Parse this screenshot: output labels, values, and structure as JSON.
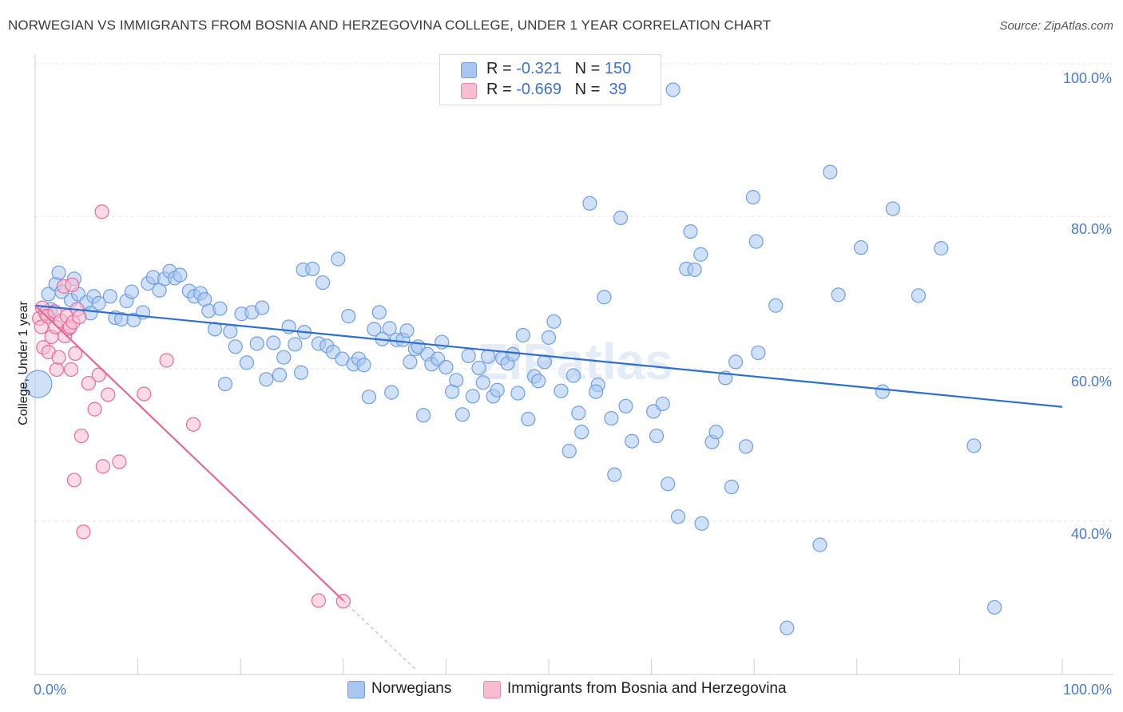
{
  "title": "NORWEGIAN VS IMMIGRANTS FROM BOSNIA AND HERZEGOVINA COLLEGE, UNDER 1 YEAR CORRELATION CHART",
  "source": "Source: ZipAtlas.com",
  "watermark": "ZIPatlas",
  "legend": {
    "rows": [
      {
        "r_label": "R = ",
        "r_value": "-0.321",
        "n_label": "N = ",
        "n_value": "150",
        "color": "#aac6f0"
      },
      {
        "r_label": "R = ",
        "r_value": "-0.669",
        "n_label": "N = ",
        "n_value": " 39",
        "color": "#f6bcd0"
      }
    ]
  },
  "bottom_legend": [
    {
      "label": "Norwegians",
      "color": "#aac6f0"
    },
    {
      "label": "Immigrants from Bosnia and Herzegovina",
      "color": "#f6bcd0"
    }
  ],
  "chart_data": {
    "type": "scatter",
    "title": "NORWEGIAN VS IMMIGRANTS FROM BOSNIA AND HERZEGOVINA COLLEGE, UNDER 1 YEAR CORRELATION CHART",
    "xlabel": "",
    "ylabel": "College, Under 1 year",
    "xlim": [
      0,
      100
    ],
    "ylim": [
      20,
      100
    ],
    "x_tick_labels": [
      "0.0%",
      "100.0%"
    ],
    "y_tick_labels": [
      "100.0%",
      "80.0%",
      "60.0%",
      "40.0%"
    ],
    "y_ticks": [
      100,
      80,
      60,
      40
    ],
    "grid": true,
    "legend_position": "top-center",
    "series": [
      {
        "name": "Norwegians",
        "color": "#6f9fe0",
        "fill": "#aac6f0",
        "trend": {
          "x": [
            0,
            100
          ],
          "y": [
            68.3,
            55.0
          ]
        },
        "points": [
          [
            0.3,
            58.0
          ],
          [
            1.1,
            67.2
          ],
          [
            1.5,
            67.8
          ],
          [
            1.3,
            69.8
          ],
          [
            2.0,
            71.1
          ],
          [
            2.3,
            72.6
          ],
          [
            2.6,
            70.1
          ],
          [
            3.5,
            69.0
          ],
          [
            3.8,
            71.8
          ],
          [
            4.2,
            69.8
          ],
          [
            5.0,
            68.7
          ],
          [
            5.7,
            69.5
          ],
          [
            6.2,
            68.6
          ],
          [
            5.4,
            67.3
          ],
          [
            7.3,
            69.5
          ],
          [
            7.8,
            66.7
          ],
          [
            8.4,
            66.5
          ],
          [
            8.9,
            68.9
          ],
          [
            9.4,
            70.1
          ],
          [
            9.6,
            66.4
          ],
          [
            10.5,
            67.4
          ],
          [
            11.0,
            71.2
          ],
          [
            11.5,
            72.0
          ],
          [
            12.1,
            70.3
          ],
          [
            12.6,
            71.8
          ],
          [
            13.1,
            72.8
          ],
          [
            13.6,
            71.9
          ],
          [
            14.1,
            72.3
          ],
          [
            15.0,
            70.2
          ],
          [
            15.5,
            69.5
          ],
          [
            16.1,
            69.9
          ],
          [
            16.5,
            69.1
          ],
          [
            16.9,
            67.6
          ],
          [
            17.5,
            65.2
          ],
          [
            18.0,
            67.9
          ],
          [
            18.5,
            58.0
          ],
          [
            19.0,
            64.9
          ],
          [
            19.5,
            62.9
          ],
          [
            20.1,
            67.2
          ],
          [
            20.6,
            60.8
          ],
          [
            21.1,
            67.4
          ],
          [
            21.6,
            63.3
          ],
          [
            22.1,
            68.0
          ],
          [
            22.5,
            58.6
          ],
          [
            23.2,
            63.4
          ],
          [
            23.8,
            59.2
          ],
          [
            24.2,
            61.5
          ],
          [
            24.7,
            65.5
          ],
          [
            25.3,
            63.2
          ],
          [
            25.9,
            59.5
          ],
          [
            26.2,
            64.8
          ],
          [
            26.1,
            73.0
          ],
          [
            27.0,
            73.1
          ],
          [
            27.6,
            63.3
          ],
          [
            28.0,
            71.3
          ],
          [
            28.4,
            63.0
          ],
          [
            29.0,
            62.2
          ],
          [
            29.5,
            74.4
          ],
          [
            29.9,
            61.3
          ],
          [
            30.5,
            66.9
          ],
          [
            31.0,
            60.6
          ],
          [
            31.5,
            61.3
          ],
          [
            32.0,
            60.5
          ],
          [
            32.5,
            56.3
          ],
          [
            33.0,
            65.2
          ],
          [
            33.5,
            67.4
          ],
          [
            33.8,
            63.9
          ],
          [
            34.5,
            65.3
          ],
          [
            34.7,
            56.9
          ],
          [
            35.2,
            63.8
          ],
          [
            35.8,
            63.8
          ],
          [
            36.2,
            65.0
          ],
          [
            36.5,
            60.9
          ],
          [
            37.0,
            62.6
          ],
          [
            37.3,
            62.9
          ],
          [
            37.8,
            53.9
          ],
          [
            38.2,
            61.9
          ],
          [
            38.6,
            60.6
          ],
          [
            39.2,
            61.3
          ],
          [
            39.6,
            63.5
          ],
          [
            40.0,
            60.2
          ],
          [
            40.6,
            57.0
          ],
          [
            41.0,
            58.5
          ],
          [
            41.6,
            54.0
          ],
          [
            42.2,
            61.7
          ],
          [
            42.6,
            56.4
          ],
          [
            43.2,
            60.1
          ],
          [
            43.6,
            58.2
          ],
          [
            44.1,
            61.6
          ],
          [
            44.6,
            56.4
          ],
          [
            45.0,
            57.2
          ],
          [
            45.5,
            61.4
          ],
          [
            46.0,
            60.7
          ],
          [
            46.5,
            61.9
          ],
          [
            47.0,
            56.8
          ],
          [
            47.5,
            64.4
          ],
          [
            48.0,
            53.4
          ],
          [
            48.6,
            59.0
          ],
          [
            49.0,
            58.4
          ],
          [
            49.6,
            60.9
          ],
          [
            50.0,
            64.1
          ],
          [
            50.5,
            66.2
          ],
          [
            51.2,
            57.1
          ],
          [
            52.0,
            49.2
          ],
          [
            52.4,
            59.1
          ],
          [
            52.9,
            54.2
          ],
          [
            53.2,
            51.7
          ],
          [
            54.0,
            81.7
          ],
          [
            54.8,
            57.9
          ],
          [
            54.6,
            57.0
          ],
          [
            55.4,
            69.4
          ],
          [
            56.1,
            53.5
          ],
          [
            56.4,
            46.1
          ],
          [
            57.0,
            79.8
          ],
          [
            57.5,
            55.1
          ],
          [
            58.1,
            50.5
          ],
          [
            60.2,
            54.4
          ],
          [
            60.5,
            51.2
          ],
          [
            61.1,
            55.4
          ],
          [
            61.6,
            44.9
          ],
          [
            62.1,
            96.6
          ],
          [
            62.6,
            40.6
          ],
          [
            63.4,
            73.1
          ],
          [
            63.8,
            78.0
          ],
          [
            64.2,
            73.0
          ],
          [
            64.8,
            75.0
          ],
          [
            64.9,
            39.7
          ],
          [
            65.9,
            50.4
          ],
          [
            66.3,
            51.7
          ],
          [
            67.2,
            58.8
          ],
          [
            67.8,
            44.5
          ],
          [
            68.2,
            60.9
          ],
          [
            69.2,
            49.8
          ],
          [
            69.9,
            82.5
          ],
          [
            70.2,
            76.7
          ],
          [
            70.4,
            62.1
          ],
          [
            72.1,
            68.3
          ],
          [
            73.2,
            26.0
          ],
          [
            76.4,
            36.9
          ],
          [
            77.4,
            85.8
          ],
          [
            78.2,
            69.7
          ],
          [
            80.4,
            75.9
          ],
          [
            82.5,
            57.0
          ],
          [
            83.5,
            81.0
          ],
          [
            86.0,
            69.6
          ],
          [
            88.2,
            75.8
          ],
          [
            91.4,
            49.9
          ],
          [
            93.4,
            28.7
          ]
        ]
      },
      {
        "name": "Immigrants from Bosnia and Herzegovina",
        "color": "#e86b9a",
        "fill": "#f6bcd0",
        "trend": {
          "x": [
            0,
            30
          ],
          "y": [
            68.3,
            29.6
          ]
        },
        "trend_dashed": {
          "x": [
            30,
            37
          ],
          "y": [
            29.6,
            20.6
          ]
        },
        "points": [
          [
            0.4,
            66.6
          ],
          [
            0.6,
            65.5
          ],
          [
            0.7,
            68.0
          ],
          [
            0.8,
            62.8
          ],
          [
            1.0,
            67.3
          ],
          [
            1.2,
            66.9
          ],
          [
            1.3,
            62.2
          ],
          [
            1.6,
            64.2
          ],
          [
            1.9,
            67.5
          ],
          [
            2.0,
            65.5
          ],
          [
            2.1,
            59.9
          ],
          [
            2.3,
            61.5
          ],
          [
            2.5,
            66.3
          ],
          [
            2.8,
            70.8
          ],
          [
            2.9,
            64.3
          ],
          [
            3.1,
            66.9
          ],
          [
            3.3,
            65.3
          ],
          [
            3.4,
            65.5
          ],
          [
            3.5,
            59.9
          ],
          [
            3.6,
            71.0
          ],
          [
            3.7,
            66.1
          ],
          [
            3.8,
            45.4
          ],
          [
            3.9,
            62.0
          ],
          [
            4.1,
            67.8
          ],
          [
            4.3,
            66.8
          ],
          [
            4.5,
            51.2
          ],
          [
            4.7,
            38.6
          ],
          [
            5.2,
            58.1
          ],
          [
            5.8,
            54.7
          ],
          [
            6.2,
            59.2
          ],
          [
            6.5,
            80.6
          ],
          [
            6.6,
            47.2
          ],
          [
            7.1,
            56.6
          ],
          [
            8.2,
            47.8
          ],
          [
            10.6,
            56.7
          ],
          [
            12.8,
            61.1
          ],
          [
            15.4,
            52.7
          ],
          [
            27.6,
            29.6
          ],
          [
            30.0,
            29.5
          ]
        ]
      }
    ]
  }
}
